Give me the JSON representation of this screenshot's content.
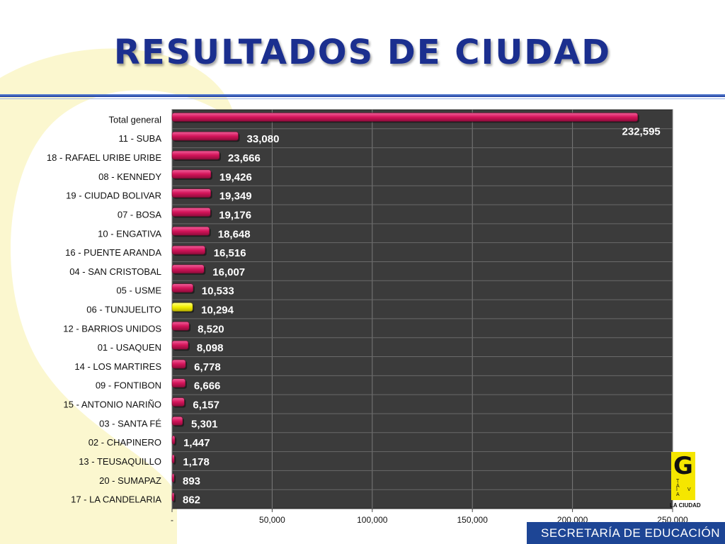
{
  "page": {
    "title": "RESULTADOS DE CIUDAD",
    "footer": "SECRETARÍA DE EDUCACIÓN",
    "logo_fragment": {
      "letter": "G",
      "row1": "T Á",
      "row2": "I V A",
      "caption": "LA CIUDAD"
    }
  },
  "colors": {
    "title": "#1b2f8f",
    "plot_background": "#3b3b3b",
    "bar": "#d4145a",
    "highlight_bar": "#f2ee00",
    "footer": "#1d4595"
  },
  "chart_data": {
    "type": "bar",
    "orientation": "horizontal",
    "categories": [
      "Total general",
      "11 - SUBA",
      "18 - RAFAEL URIBE URIBE",
      "08 - KENNEDY",
      "19 - CIUDAD BOLIVAR",
      "07 - BOSA",
      "10 - ENGATIVA",
      "16 - PUENTE ARANDA",
      "04 - SAN CRISTOBAL",
      "05 - USME",
      "06 - TUNJUELITO",
      "12 - BARRIOS UNIDOS",
      "01 - USAQUEN",
      "14 - LOS MARTIRES",
      "09 - FONTIBON",
      "15 - ANTONIO NARIÑO",
      "03 - SANTA FÉ",
      "02 - CHAPINERO",
      "13 - TEUSAQUILLO",
      "20 - SUMAPAZ",
      "17 - LA CANDELARIA"
    ],
    "values": [
      232595,
      33080,
      23666,
      19426,
      19349,
      19176,
      18648,
      16516,
      16007,
      10533,
      10294,
      8520,
      8098,
      6778,
      6666,
      6157,
      5301,
      1447,
      1178,
      893,
      862
    ],
    "value_labels": [
      "232,595",
      "33,080",
      "23,666",
      "19,426",
      "19,349",
      "19,176",
      "18,648",
      "16,516",
      "16,007",
      "10,533",
      "10,294",
      "8,520",
      "8,098",
      "6,778",
      "6,666",
      "6,157",
      "5,301",
      "1,447",
      "1,178",
      "893",
      "862"
    ],
    "highlighted_category": "06 - TUNJUELITO",
    "xlim": [
      0,
      250000
    ],
    "x_ticks": [
      0,
      50000,
      100000,
      150000,
      200000,
      250000
    ],
    "x_tick_labels": [
      "-",
      "50,000",
      "100,000",
      "150,000",
      "200,000",
      "250,000"
    ],
    "grid": true,
    "legend": false
  }
}
